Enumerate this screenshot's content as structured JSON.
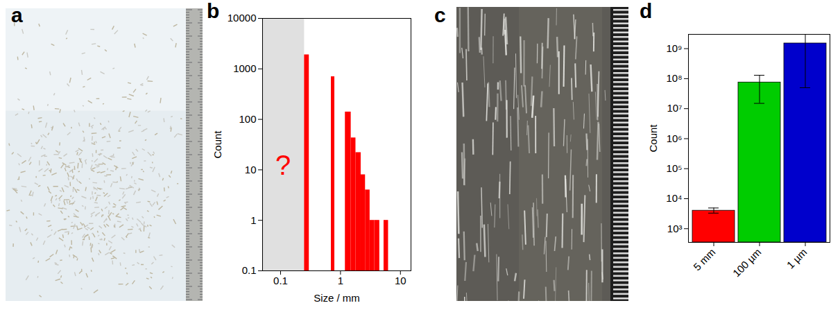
{
  "panel_labels": [
    "a",
    "b",
    "c",
    "d"
  ],
  "chart_data": [
    {
      "type": "histogram",
      "x_label": "Size / mm",
      "y_label": "Count",
      "bins": [
        0.25,
        0.3,
        0.7,
        0.8,
        1.2,
        1.5,
        1.8,
        2.2,
        2.6,
        3.1,
        3.7,
        4.5,
        5.3,
        6.3
      ],
      "values": [
        1900,
        null,
        700,
        null,
        140,
        43,
        22,
        8,
        4,
        1,
        1,
        null,
        1
      ],
      "color": "#ff0000",
      "log": true,
      "xlim": [
        0.05,
        15
      ],
      "ylim": [
        0.1,
        10000
      ],
      "xticks": [
        0.1,
        1,
        10
      ],
      "yticks": [
        0.1,
        1,
        10,
        100,
        1000,
        10000
      ],
      "shaded_x": [
        0.05,
        0.25
      ],
      "annotations": [
        {
          "text": "?",
          "x": 0.11,
          "y": 12,
          "color": "#ff0000"
        }
      ]
    },
    {
      "type": "bar",
      "y_label": "Count",
      "categories": [
        "5 mm",
        "100 µm",
        "1 µm"
      ],
      "values": [
        4000,
        75000000,
        1500000000
      ],
      "error_low": [
        3300,
        15000000,
        50000000
      ],
      "error_high": [
        4900,
        130000000,
        3000000000
      ],
      "colors": [
        "#ff0000",
        "#00cc00",
        "#0000cc"
      ],
      "log": "y",
      "ylim": [
        350,
        3000000000
      ],
      "yticks": [
        {
          "value": 1000,
          "label": "10³"
        },
        {
          "value": 10000,
          "label": "10⁴"
        },
        {
          "value": 100000,
          "label": "10⁵"
        },
        {
          "value": 1000000,
          "label": "10⁶"
        },
        {
          "value": 10000000,
          "label": "10⁷"
        },
        {
          "value": 100000000,
          "label": "10⁸"
        },
        {
          "value": 1000000000,
          "label": "10⁹"
        }
      ]
    }
  ]
}
